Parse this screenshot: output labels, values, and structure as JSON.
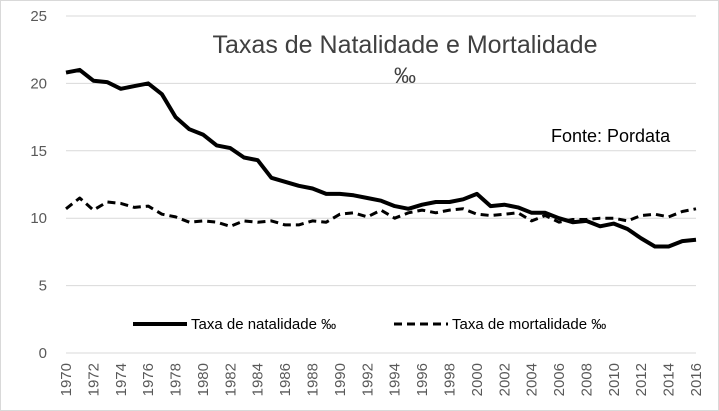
{
  "chart_data": {
    "type": "line",
    "title": "Taxas de Natalidade e Mortalidade",
    "subtitle": "‰",
    "annotation": "Fonte: Pordata",
    "xlabel": "",
    "ylabel": "",
    "ylim": [
      0,
      25
    ],
    "yticks": [
      0,
      5,
      10,
      15,
      20,
      25
    ],
    "xticks": [
      "1970",
      "1972",
      "1974",
      "1976",
      "1978",
      "1980",
      "1982",
      "1984",
      "1986",
      "1988",
      "1990",
      "1992",
      "1994",
      "1996",
      "1998",
      "2000",
      "2002",
      "2004",
      "2006",
      "2008",
      "2010",
      "2012",
      "2014",
      "2016"
    ],
    "grid": "horizontal",
    "legend_position": "bottom",
    "x": [
      1970,
      1971,
      1972,
      1973,
      1974,
      1975,
      1976,
      1977,
      1978,
      1979,
      1980,
      1981,
      1982,
      1983,
      1984,
      1985,
      1986,
      1987,
      1988,
      1989,
      1990,
      1991,
      1992,
      1993,
      1994,
      1995,
      1996,
      1997,
      1998,
      1999,
      2000,
      2001,
      2002,
      2003,
      2004,
      2005,
      2006,
      2007,
      2008,
      2009,
      2010,
      2011,
      2012,
      2013,
      2014,
      2015,
      2016
    ],
    "series": [
      {
        "name": "Taxa de natalidade  ‰",
        "style": "solid",
        "color": "#000000",
        "values": [
          20.8,
          21.0,
          20.2,
          20.1,
          19.6,
          19.8,
          20.0,
          19.2,
          17.5,
          16.6,
          16.2,
          15.4,
          15.2,
          14.5,
          14.3,
          13.0,
          12.7,
          12.4,
          12.2,
          11.8,
          11.8,
          11.7,
          11.5,
          11.3,
          10.9,
          10.7,
          11.0,
          11.2,
          11.2,
          11.4,
          11.8,
          10.9,
          11.0,
          10.8,
          10.4,
          10.4,
          10.0,
          9.7,
          9.8,
          9.4,
          9.6,
          9.2,
          8.5,
          7.9,
          7.9,
          8.3,
          8.4
        ]
      },
      {
        "name": "Taxa  de mortalidade  ‰",
        "style": "dashed",
        "color": "#000000",
        "values": [
          10.7,
          11.5,
          10.6,
          11.2,
          11.1,
          10.8,
          10.9,
          10.3,
          10.1,
          9.7,
          9.8,
          9.7,
          9.4,
          9.8,
          9.7,
          9.8,
          9.5,
          9.5,
          9.8,
          9.7,
          10.3,
          10.4,
          10.1,
          10.6,
          10.0,
          10.4,
          10.6,
          10.4,
          10.6,
          10.7,
          10.3,
          10.2,
          10.3,
          10.4,
          9.8,
          10.2,
          9.7,
          9.9,
          9.9,
          10.0,
          10.0,
          9.8,
          10.2,
          10.3,
          10.1,
          10.5,
          10.7
        ]
      }
    ]
  }
}
